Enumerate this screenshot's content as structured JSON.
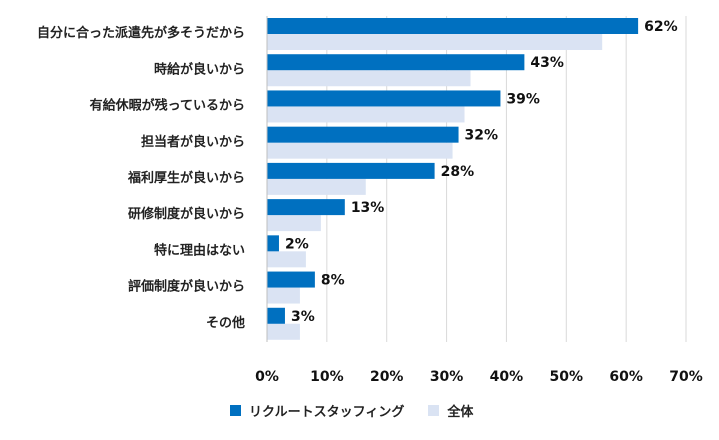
{
  "chart_data": {
    "type": "bar",
    "orientation": "horizontal",
    "categories": [
      "自分に合った派遣先が多そうだから",
      "時給が良いから",
      "有給休暇が残っているから",
      "担当者が良いから",
      "福利厚生が良いから",
      "研修制度が良いから",
      "特に理由はない",
      "評価制度が良いから",
      "その他"
    ],
    "series": [
      {
        "name": "リクルートスタッフィング",
        "color": "#0070c0",
        "values": [
          62,
          43,
          39,
          32,
          28,
          13,
          2,
          8,
          3
        ],
        "labels": [
          "62%",
          "43%",
          "39%",
          "32%",
          "28%",
          "13%",
          "2%",
          "8%",
          "3%"
        ]
      },
      {
        "name": "全体",
        "color": "#dae3f3",
        "values": [
          56,
          34,
          33,
          31,
          16.5,
          9,
          6.5,
          5.5,
          5.5
        ]
      }
    ],
    "xlim": [
      0,
      70
    ],
    "xticks": [
      "0%",
      "10%",
      "20%",
      "30%",
      "40%",
      "50%",
      "60%",
      "70%"
    ],
    "grid": true,
    "legend_position": "bottom"
  }
}
